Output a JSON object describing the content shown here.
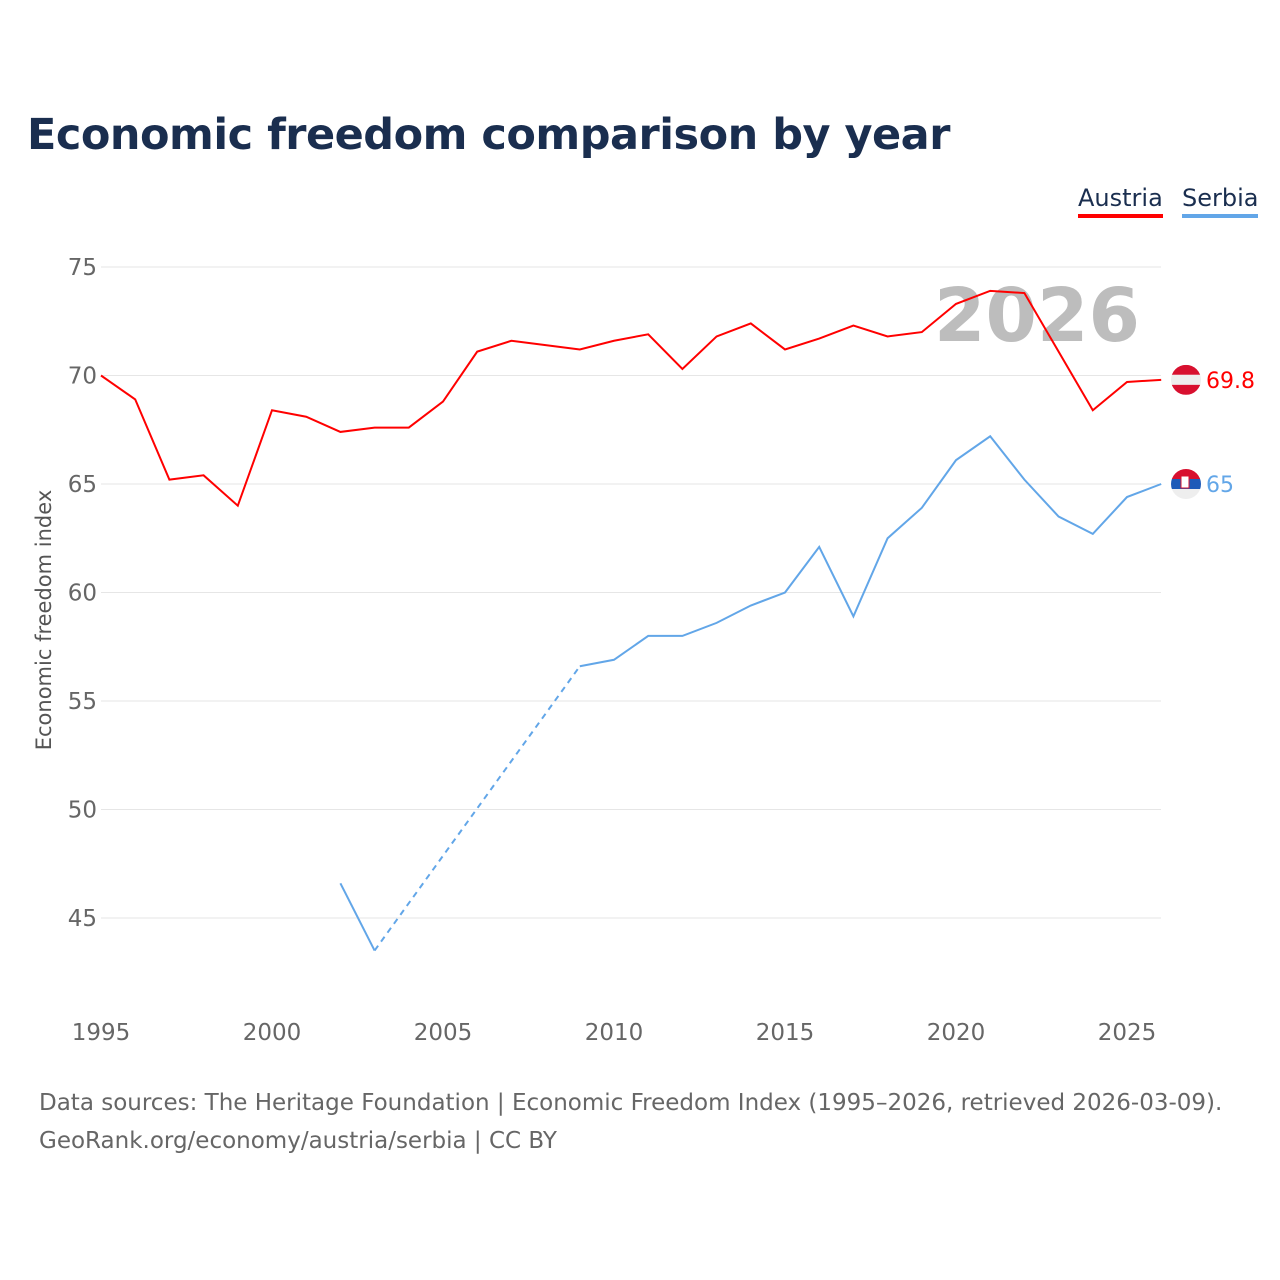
{
  "chart_data": {
    "type": "line",
    "title": "Economic freedom comparison by year",
    "ylabel": "Economic freedom index",
    "xlabel": "",
    "xlim": [
      1995,
      2026
    ],
    "ylim": [
      42,
      76
    ],
    "xticks": [
      "1995",
      "2000",
      "2005",
      "2010",
      "2015",
      "2020",
      "2025"
    ],
    "yticks": [
      "45",
      "50",
      "55",
      "60",
      "65",
      "70",
      "75"
    ],
    "watermark_year": "2026",
    "legend": "top-right",
    "series": [
      {
        "name": "Austria",
        "color": "#ff0000",
        "end_label": "69.8",
        "x": [
          1995,
          1996,
          1997,
          1998,
          1999,
          2000,
          2001,
          2002,
          2003,
          2004,
          2005,
          2006,
          2007,
          2008,
          2009,
          2010,
          2011,
          2012,
          2013,
          2014,
          2015,
          2016,
          2017,
          2018,
          2019,
          2020,
          2021,
          2022,
          2023,
          2024,
          2025,
          2026
        ],
        "values": [
          70.0,
          68.9,
          65.2,
          65.4,
          64.0,
          68.4,
          68.1,
          67.4,
          67.6,
          67.6,
          68.8,
          71.1,
          71.6,
          71.4,
          71.2,
          71.6,
          71.9,
          70.3,
          71.8,
          72.4,
          71.2,
          71.7,
          72.3,
          71.8,
          72.0,
          73.3,
          73.9,
          73.8,
          71.1,
          68.4,
          69.7,
          69.8
        ]
      },
      {
        "name": "Serbia",
        "color": "#62a6e8",
        "end_label": "65",
        "x": [
          2002,
          2003,
          2009,
          2010,
          2011,
          2012,
          2013,
          2014,
          2015,
          2016,
          2017,
          2018,
          2019,
          2020,
          2021,
          2022,
          2023,
          2024,
          2025,
          2026
        ],
        "values": [
          46.6,
          43.5,
          56.6,
          56.9,
          58.0,
          58.0,
          58.6,
          59.4,
          60.0,
          62.1,
          58.9,
          62.5,
          63.9,
          66.1,
          67.2,
          65.2,
          63.5,
          62.7,
          64.4,
          65.0
        ],
        "gap_after": 2003
      }
    ]
  },
  "footer": {
    "line1": "Data sources: The Heritage Foundation | Economic Freedom Index (1995–2026, retrieved 2026-03-09).",
    "line2": "GeoRank.org/economy/austria/serbia | CC BY"
  }
}
